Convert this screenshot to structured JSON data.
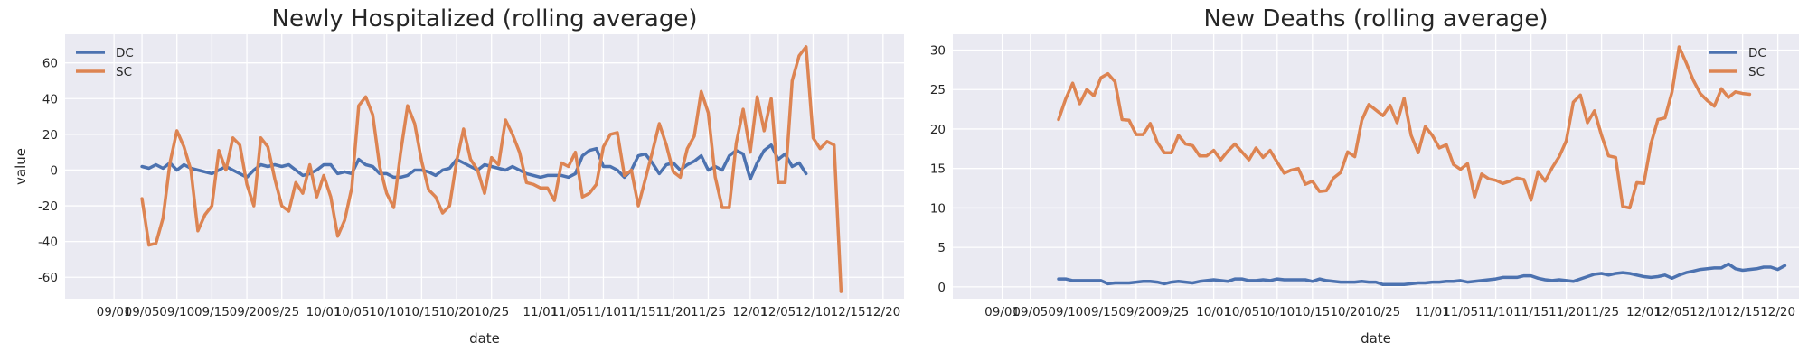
{
  "chart_data": [
    {
      "type": "line",
      "title": "Newly Hospitalized (rolling average)",
      "xlabel": "date",
      "ylabel": "value",
      "x_ticks": [
        "09/01",
        "09/05",
        "09/10",
        "09/15",
        "09/20",
        "09/25",
        "10/01",
        "10/05",
        "10/10",
        "10/15",
        "10/20",
        "10/25",
        "11/01",
        "11/05",
        "11/10",
        "11/15",
        "11/20",
        "11/25",
        "12/01",
        "12/05",
        "12/10",
        "12/15",
        "12/20"
      ],
      "y_ticks": [
        -60,
        -40,
        -20,
        0,
        20,
        40,
        60
      ],
      "ylim": [
        -72,
        76
      ],
      "grid": true,
      "legend_position": "top-left",
      "series": [
        {
          "name": "DC",
          "color": "#4c72b0",
          "x_start": "2020-09-05",
          "values": [
            2,
            1,
            3,
            1,
            4,
            0,
            3,
            1,
            0,
            -1,
            -2,
            0,
            2,
            0,
            -2,
            -4,
            0,
            3,
            2,
            3,
            2,
            3,
            0,
            -3,
            -2,
            0,
            3,
            3,
            -2,
            -1,
            -2,
            6,
            3,
            2,
            -2,
            -2,
            -4,
            -4,
            -3,
            0,
            0,
            -1,
            -3,
            0,
            1,
            6,
            4,
            2,
            0,
            3,
            2,
            1,
            0,
            2,
            0,
            -2,
            -3,
            -4,
            -3,
            -3,
            -3,
            -4,
            -2,
            8,
            11,
            12,
            2,
            2,
            0,
            -4,
            0,
            8,
            9,
            4,
            -2,
            3,
            4,
            0,
            3,
            5,
            8,
            0,
            2,
            0,
            8,
            11,
            9,
            -5,
            4,
            11,
            14,
            6,
            9,
            2,
            4,
            -2
          ]
        },
        {
          "name": "SC",
          "color": "#dd8452",
          "x_start": "2020-09-05",
          "values": [
            -16,
            -42,
            -41,
            -27,
            4,
            22,
            13,
            0,
            -34,
            -25,
            -20,
            11,
            0,
            18,
            14,
            -8,
            -20,
            18,
            13,
            -5,
            -20,
            -23,
            -7,
            -13,
            3,
            -15,
            -3,
            -15,
            -37,
            -28,
            -10,
            36,
            41,
            31,
            2,
            -13,
            -21,
            10,
            36,
            26,
            5,
            -11,
            -15,
            -24,
            -20,
            5,
            23,
            6,
            0,
            -13,
            7,
            3,
            28,
            20,
            10,
            -7,
            -8,
            -10,
            -10,
            -17,
            4,
            2,
            10,
            -15,
            -13,
            -8,
            13,
            20,
            21,
            -3,
            0,
            -20,
            -5,
            10,
            26,
            14,
            -1,
            -4,
            12,
            19,
            44,
            32,
            -4,
            -21,
            -21,
            15,
            34,
            10,
            41,
            22,
            40,
            -7,
            -7,
            50,
            64,
            69,
            18,
            12,
            16,
            14,
            -68
          ]
        }
      ]
    },
    {
      "type": "line",
      "title": "New Deaths (rolling average)",
      "xlabel": "date",
      "ylabel": "",
      "x_ticks": [
        "09/01",
        "09/05",
        "09/10",
        "09/15",
        "09/20",
        "09/25",
        "10/01",
        "10/05",
        "10/10",
        "10/15",
        "10/20",
        "10/25",
        "11/01",
        "11/05",
        "11/10",
        "11/15",
        "11/20",
        "11/25",
        "12/01",
        "12/05",
        "12/10",
        "12/15",
        "12/20"
      ],
      "y_ticks": [
        0,
        5,
        10,
        15,
        20,
        25,
        30
      ],
      "ylim": [
        -1.5,
        32
      ],
      "grid": true,
      "legend_position": "top-right",
      "series": [
        {
          "name": "DC",
          "color": "#4c72b0",
          "x_start": "2020-09-09",
          "values": [
            1.0,
            1.0,
            0.8,
            0.8,
            0.8,
            0.8,
            0.8,
            0.4,
            0.5,
            0.5,
            0.5,
            0.6,
            0.7,
            0.7,
            0.6,
            0.4,
            0.6,
            0.7,
            0.6,
            0.5,
            0.7,
            0.8,
            0.9,
            0.8,
            0.7,
            1.0,
            1.0,
            0.8,
            0.8,
            0.9,
            0.8,
            1.0,
            0.9,
            0.9,
            0.9,
            0.9,
            0.7,
            1.0,
            0.8,
            0.7,
            0.6,
            0.6,
            0.6,
            0.7,
            0.6,
            0.6,
            0.3,
            0.3,
            0.3,
            0.3,
            0.4,
            0.5,
            0.5,
            0.6,
            0.6,
            0.7,
            0.7,
            0.8,
            0.6,
            0.7,
            0.8,
            0.9,
            1.0,
            1.2,
            1.2,
            1.2,
            1.4,
            1.4,
            1.1,
            0.9,
            0.8,
            0.9,
            0.8,
            0.7,
            1.0,
            1.3,
            1.6,
            1.7,
            1.5,
            1.7,
            1.8,
            1.7,
            1.5,
            1.3,
            1.2,
            1.3,
            1.5,
            1.1,
            1.5,
            1.8,
            2.0,
            2.2,
            2.3,
            2.4,
            2.4,
            2.9,
            2.3,
            2.1,
            2.2,
            2.3,
            2.5,
            2.5,
            2.2,
            2.7
          ]
        },
        {
          "name": "SC",
          "color": "#dd8452",
          "x_start": "2020-09-09",
          "values": [
            21.2,
            23.8,
            25.8,
            23.2,
            25.0,
            24.2,
            26.5,
            27.0,
            26.0,
            21.2,
            21.1,
            19.3,
            19.3,
            20.7,
            18.3,
            17.0,
            17.0,
            19.2,
            18.1,
            17.9,
            16.6,
            16.6,
            17.3,
            16.1,
            17.2,
            18.1,
            17.1,
            16.1,
            17.6,
            16.4,
            17.3,
            15.8,
            14.4,
            14.8,
            15.0,
            13.0,
            13.4,
            12.1,
            12.2,
            13.8,
            14.5,
            17.1,
            16.5,
            21.1,
            23.1,
            22.4,
            21.7,
            23.0,
            20.8,
            23.9,
            19.2,
            17.0,
            20.3,
            19.2,
            17.6,
            18.0,
            15.5,
            14.9,
            15.6,
            11.4,
            14.3,
            13.7,
            13.5,
            13.1,
            13.4,
            13.8,
            13.6,
            11.0,
            14.6,
            13.4,
            15.1,
            16.5,
            18.5,
            23.4,
            24.3,
            20.8,
            22.3,
            19.2,
            16.6,
            16.4,
            10.2,
            10.0,
            13.2,
            13.1,
            18.1,
            21.2,
            21.4,
            24.7,
            30.4,
            28.4,
            26.2,
            24.5,
            23.6,
            22.9,
            25.1,
            24.0,
            24.7,
            24.5,
            24.4
          ]
        }
      ]
    }
  ]
}
